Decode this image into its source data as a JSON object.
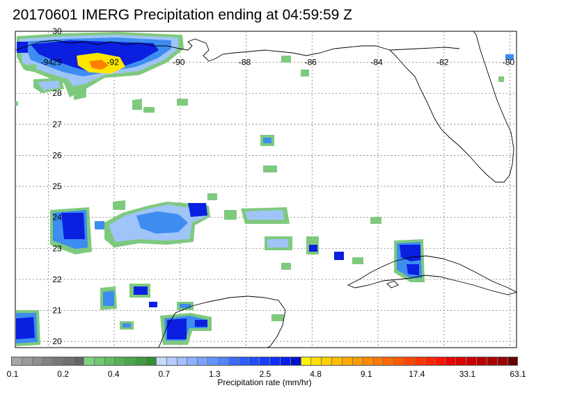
{
  "title": "20170601 IMERG Precipitation ending at 04:59:59 Z",
  "map": {
    "lon_range": [
      -95,
      -79.8
    ],
    "lat_range": [
      19.8,
      30
    ],
    "lon_ticks": [
      "-94",
      "-92",
      "-90",
      "-88",
      "-86",
      "-84",
      "-82",
      "-80"
    ],
    "lat_ticks": [
      "30",
      "29",
      "28",
      "27",
      "26",
      "25",
      "24",
      "23",
      "22",
      "21",
      "20"
    ],
    "grid": true,
    "coastline_color": "#000000",
    "grid_color": "#777777"
  },
  "colorbar": {
    "label": "Precipitation rate (mm/hr)",
    "tick_labels": [
      "0.1",
      "0.2",
      "0.4",
      "0.7",
      "1.3",
      "2.5",
      "4.8",
      "9.1",
      "17.4",
      "33.1",
      "63.1"
    ],
    "colors": [
      "#a6a6a6",
      "#9a9a9a",
      "#8e8e8e",
      "#838383",
      "#787878",
      "#6e6e6e",
      "#646464",
      "#7fd37f",
      "#70c870",
      "#62bd62",
      "#56b256",
      "#4aa64a",
      "#3f9b3f",
      "#358f35",
      "#c8d8ff",
      "#b6cbff",
      "#a3beff",
      "#8eb0ff",
      "#78a2ff",
      "#6394ff",
      "#4f86ff",
      "#3a6bff",
      "#2e5cff",
      "#224dff",
      "#173eff",
      "#0d2fff",
      "#0620e6",
      "#0010cc",
      "#fff200",
      "#ffe000",
      "#ffce00",
      "#ffbd00",
      "#ffac00",
      "#ff9b00",
      "#ff8a00",
      "#ff7900",
      "#ff6800",
      "#ff5700",
      "#ff4600",
      "#ff3500",
      "#ff2400",
      "#ff1300",
      "#ee0000",
      "#dd0000",
      "#cc0000",
      "#bb0000",
      "#aa0000",
      "#990000",
      "#660000"
    ]
  },
  "precip_colors": {
    "light": "#7fc97f",
    "low": "#9fc4f8",
    "mid": "#3d8cf0",
    "high": "#0a1fe0",
    "heavy": "#ffe600",
    "extreme": "#ff7f00"
  }
}
